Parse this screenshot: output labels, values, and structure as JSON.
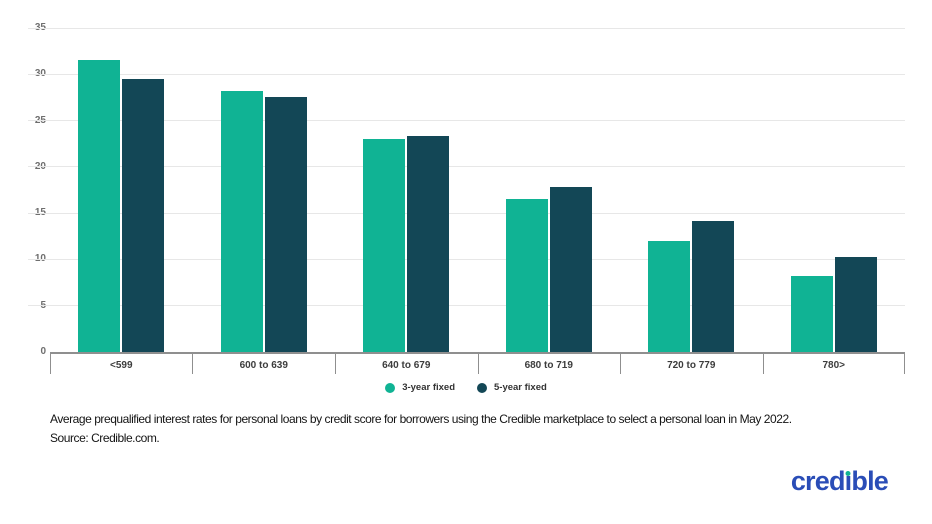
{
  "chart_data": {
    "type": "bar",
    "title": "",
    "categories": [
      "<599",
      "600 to 639",
      "640 to 679",
      "680 to 719",
      "720 to 779",
      "780>"
    ],
    "series": [
      {
        "name": "3-year fixed",
        "color": "#10b394",
        "values": [
          31.5,
          28.2,
          23.0,
          16.5,
          12.0,
          8.2
        ]
      },
      {
        "name": "5-year fixed",
        "color": "#134756",
        "values": [
          29.5,
          27.5,
          23.3,
          17.8,
          14.1,
          10.3
        ]
      }
    ],
    "xlabel": "",
    "ylabel": "",
    "ylim": [
      0,
      35
    ],
    "yticks": [
      0,
      5,
      10,
      15,
      20,
      25,
      30,
      35
    ],
    "grid": true,
    "legend_position": "bottom-center"
  },
  "caption": {
    "line1": "Average prequalified interest rates for personal loans by credit score for borrowers using the Credible marketplace to select a personal loan in May 2022.",
    "line2": "Source: Credible.com."
  },
  "logo": {
    "text": "credible",
    "part_before": "cred",
    "part_i": "ı",
    "part_after": "ble",
    "color": "#2a4db7",
    "dot_color": "#10b394"
  },
  "colors": {
    "background": "#ffffff",
    "axis": "#8f8f8f",
    "gridline": "#e7e7e7",
    "y_tick_label": "#6e6e6e",
    "category_label": "#3c3c3c",
    "legend_text": "#333333",
    "caption_text": "#141414"
  }
}
